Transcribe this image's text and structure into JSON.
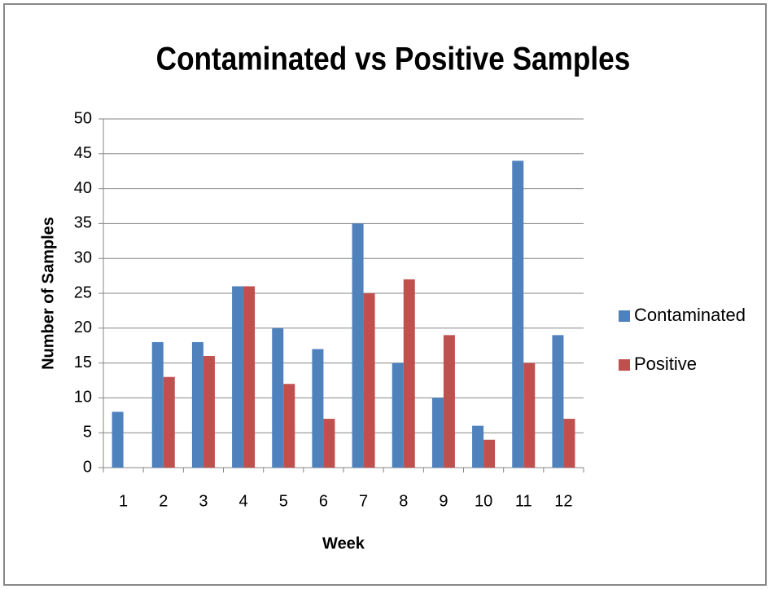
{
  "chart_data": {
    "type": "bar",
    "title": "Contaminated vs Positive Samples",
    "x_label": "Week",
    "y_label": "Number of Samples",
    "categories": [
      "1",
      "2",
      "3",
      "4",
      "5",
      "6",
      "7",
      "8",
      "9",
      "10",
      "11",
      "12"
    ],
    "series": [
      {
        "name": "Contaminated",
        "color": "#4f81bd",
        "values": [
          8,
          18,
          18,
          26,
          20,
          17,
          35,
          15,
          10,
          6,
          44,
          19
        ]
      },
      {
        "name": "Positive",
        "color": "#c0504d",
        "values": [
          0,
          13,
          16,
          26,
          12,
          7,
          25,
          27,
          19,
          4,
          15,
          7
        ]
      }
    ],
    "ylim": [
      0,
      50
    ],
    "yticks": [
      0,
      5,
      10,
      15,
      20,
      25,
      30,
      35,
      40,
      45,
      50
    ],
    "grid": true,
    "legend": "right"
  }
}
